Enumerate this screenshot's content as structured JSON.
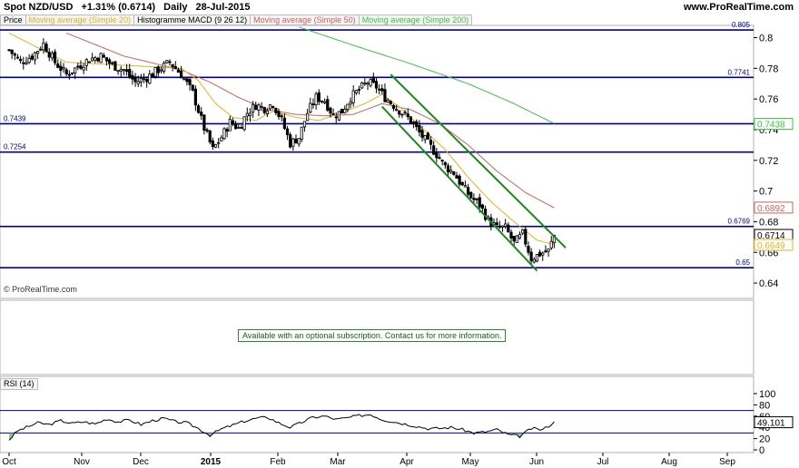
{
  "header": {
    "instrument": "Spot NZD/USD",
    "change": "+1.31% (0.6714)",
    "period": "Daily",
    "date": "28-Jul-2015",
    "site": "www.ProRealTime.com"
  },
  "legend": [
    {
      "label": "Price",
      "color": "#000000"
    },
    {
      "label": "Moving average (Simple 20)",
      "color": "#e8b020"
    },
    {
      "label": "Histogramme MACD (9 26 12)",
      "color": "#000000"
    },
    {
      "label": "Moving average (Simple 50)",
      "color": "#d06060"
    },
    {
      "label": "Moving average (Simple 200)",
      "color": "#40c040"
    }
  ],
  "copyright": "© ProRealTime.com",
  "subscription_note": "Available with an optional subscription. Contact us for more information.",
  "rsi_label": "RSI (14)",
  "chart_data": {
    "type": "candlestick",
    "x_labels": [
      "Oct",
      "Nov",
      "Dec",
      "2015",
      "Feb",
      "Mar",
      "Apr",
      "May",
      "Jun",
      "Jul",
      "Aug",
      "Sep"
    ],
    "y_ticks": [
      0.64,
      0.66,
      0.68,
      0.7,
      0.72,
      0.74,
      0.76,
      0.78,
      0.8
    ],
    "y_tick_labels": [
      "0.64",
      "0.66",
      "0.68",
      "0.7",
      "0.72",
      "0.74",
      "0.76",
      "0.78",
      "0.8"
    ],
    "ylim": [
      0.63,
      0.808
    ],
    "horizontal_levels": [
      {
        "value": 0.805,
        "label": "0.805",
        "label_side": "right"
      },
      {
        "value": 0.7741,
        "label": "0.7741",
        "label_side": "right"
      },
      {
        "value": 0.7439,
        "label": "0.7439",
        "label_side": "left"
      },
      {
        "value": 0.7254,
        "label": "0.7254",
        "label_side": "left"
      },
      {
        "value": 0.6769,
        "label": "0.6769",
        "label_side": "right"
      },
      {
        "value": 0.65,
        "label": "0.65",
        "label_side": "right"
      }
    ],
    "price_tags": [
      {
        "value": 0.7438,
        "label": "0.7438",
        "color": "#40c040"
      },
      {
        "value": 0.6892,
        "label": "0.6892",
        "color": "#d06060"
      },
      {
        "value": 0.6714,
        "label": "0.6714",
        "color": "#000000"
      },
      {
        "value": 0.6649,
        "label": "0.6649",
        "color": "#e8b020"
      }
    ],
    "close_anchors": [
      [
        0,
        0.792
      ],
      [
        4,
        0.784
      ],
      [
        8,
        0.788
      ],
      [
        12,
        0.796
      ],
      [
        16,
        0.784
      ],
      [
        20,
        0.776
      ],
      [
        24,
        0.781
      ],
      [
        28,
        0.786
      ],
      [
        32,
        0.788
      ],
      [
        36,
        0.782
      ],
      [
        40,
        0.779
      ],
      [
        44,
        0.771
      ],
      [
        48,
        0.774
      ],
      [
        52,
        0.779
      ],
      [
        56,
        0.784
      ],
      [
        60,
        0.776
      ],
      [
        64,
        0.764
      ],
      [
        68,
        0.741
      ],
      [
        71,
        0.727
      ],
      [
        74,
        0.735
      ],
      [
        77,
        0.745
      ],
      [
        80,
        0.741
      ],
      [
        83,
        0.751
      ],
      [
        86,
        0.756
      ],
      [
        89,
        0.754
      ],
      [
        92,
        0.757
      ],
      [
        95,
        0.746
      ],
      [
        98,
        0.731
      ],
      [
        101,
        0.735
      ],
      [
        104,
        0.751
      ],
      [
        107,
        0.761
      ],
      [
        110,
        0.759
      ],
      [
        113,
        0.749
      ],
      [
        116,
        0.752
      ],
      [
        119,
        0.761
      ],
      [
        122,
        0.766
      ],
      [
        125,
        0.771
      ],
      [
        128,
        0.768
      ],
      [
        131,
        0.761
      ],
      [
        134,
        0.756
      ],
      [
        137,
        0.751
      ],
      [
        140,
        0.746
      ],
      [
        143,
        0.738
      ],
      [
        146,
        0.731
      ],
      [
        149,
        0.724
      ],
      [
        152,
        0.716
      ],
      [
        155,
        0.712
      ],
      [
        158,
        0.703
      ],
      [
        161,
        0.696
      ],
      [
        164,
        0.691
      ],
      [
        167,
        0.681
      ],
      [
        170,
        0.676
      ],
      [
        173,
        0.676
      ],
      [
        176,
        0.666
      ],
      [
        179,
        0.672
      ],
      [
        182,
        0.656
      ],
      [
        185,
        0.659
      ],
      [
        188,
        0.661
      ],
      [
        190,
        0.671
      ]
    ],
    "ma20_anchors": [
      [
        0,
        0.803
      ],
      [
        20,
        0.784
      ],
      [
        40,
        0.782
      ],
      [
        60,
        0.78
      ],
      [
        66,
        0.772
      ],
      [
        72,
        0.757
      ],
      [
        78,
        0.748
      ],
      [
        86,
        0.746
      ],
      [
        92,
        0.752
      ],
      [
        100,
        0.748
      ],
      [
        108,
        0.746
      ],
      [
        116,
        0.751
      ],
      [
        124,
        0.757
      ],
      [
        130,
        0.763
      ],
      [
        136,
        0.755
      ],
      [
        144,
        0.741
      ],
      [
        152,
        0.727
      ],
      [
        160,
        0.709
      ],
      [
        168,
        0.693
      ],
      [
        176,
        0.68
      ],
      [
        184,
        0.668
      ],
      [
        190,
        0.665
      ]
    ],
    "ma50_anchors": [
      [
        20,
        0.803
      ],
      [
        40,
        0.788
      ],
      [
        60,
        0.779
      ],
      [
        70,
        0.771
      ],
      [
        80,
        0.761
      ],
      [
        90,
        0.753
      ],
      [
        100,
        0.75
      ],
      [
        110,
        0.749
      ],
      [
        120,
        0.75
      ],
      [
        130,
        0.757
      ],
      [
        140,
        0.753
      ],
      [
        150,
        0.744
      ],
      [
        160,
        0.73
      ],
      [
        170,
        0.713
      ],
      [
        180,
        0.699
      ],
      [
        190,
        0.689
      ]
    ],
    "ma200_anchors": [
      [
        101,
        0.807
      ],
      [
        120,
        0.795
      ],
      [
        140,
        0.783
      ],
      [
        160,
        0.77
      ],
      [
        176,
        0.757
      ],
      [
        190,
        0.744
      ]
    ],
    "channel_upper": [
      [
        133,
        0.776
      ],
      [
        194,
        0.663
      ]
    ],
    "channel_lower": [
      [
        130,
        0.755
      ],
      [
        184,
        0.648
      ]
    ],
    "rsi": {
      "y_ticks": [
        0,
        20,
        40,
        60,
        80,
        100
      ],
      "y_tick_labels": [
        "0",
        "20",
        "40",
        "60",
        "80",
        "100"
      ],
      "overbought": 70,
      "oversold": 30,
      "current": 49.101,
      "current_label": "49.101",
      "anchors": [
        [
          0,
          18
        ],
        [
          3,
          34
        ],
        [
          6,
          40
        ],
        [
          10,
          48
        ],
        [
          14,
          45
        ],
        [
          18,
          52
        ],
        [
          22,
          47
        ],
        [
          26,
          50
        ],
        [
          30,
          46
        ],
        [
          34,
          55
        ],
        [
          38,
          50
        ],
        [
          42,
          53
        ],
        [
          46,
          45
        ],
        [
          50,
          52
        ],
        [
          54,
          56
        ],
        [
          58,
          50
        ],
        [
          62,
          48
        ],
        [
          66,
          38
        ],
        [
          70,
          26
        ],
        [
          74,
          37
        ],
        [
          78,
          44
        ],
        [
          82,
          51
        ],
        [
          86,
          56
        ],
        [
          90,
          58
        ],
        [
          94,
          48
        ],
        [
          98,
          40
        ],
        [
          102,
          49
        ],
        [
          106,
          58
        ],
        [
          110,
          60
        ],
        [
          114,
          54
        ],
        [
          118,
          57
        ],
        [
          122,
          61
        ],
        [
          126,
          63
        ],
        [
          130,
          54
        ],
        [
          134,
          50
        ],
        [
          138,
          46
        ],
        [
          142,
          42
        ],
        [
          146,
          38
        ],
        [
          150,
          38
        ],
        [
          154,
          40
        ],
        [
          158,
          36
        ],
        [
          162,
          30
        ],
        [
          166,
          32
        ],
        [
          170,
          36
        ],
        [
          174,
          27
        ],
        [
          178,
          24
        ],
        [
          182,
          38
        ],
        [
          186,
          36
        ],
        [
          190,
          49
        ]
      ]
    }
  }
}
